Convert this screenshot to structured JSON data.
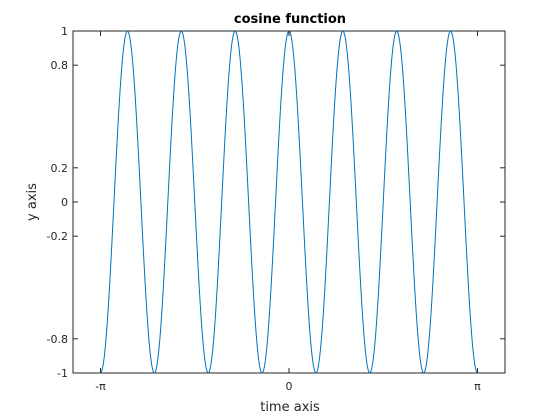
{
  "chart_data": {
    "type": "line",
    "title": "cosine function",
    "xlabel": "time axis",
    "ylabel": "y axis",
    "xlim": [
      -3.6,
      3.6
    ],
    "ylim": [
      -1,
      1
    ],
    "x_ticks": [
      {
        "value": -3.14159,
        "label": "-π"
      },
      {
        "value": 0,
        "label": "0"
      },
      {
        "value": 3.14159,
        "label": "π"
      }
    ],
    "y_ticks": [
      {
        "value": 1,
        "label": "1"
      },
      {
        "value": 0.8,
        "label": "0.8"
      },
      {
        "value": 0.2,
        "label": "0.2"
      },
      {
        "value": 0,
        "label": "0"
      },
      {
        "value": -0.2,
        "label": "-0.2"
      },
      {
        "value": -0.8,
        "label": "-0.8"
      },
      {
        "value": -1,
        "label": "-1"
      }
    ],
    "series": [
      {
        "function": "cos",
        "angular_frequency": 7,
        "x_range": [
          -3.14159,
          3.14159
        ],
        "samples": 400,
        "color": "#0072bd"
      }
    ],
    "grid": false,
    "box": true
  }
}
